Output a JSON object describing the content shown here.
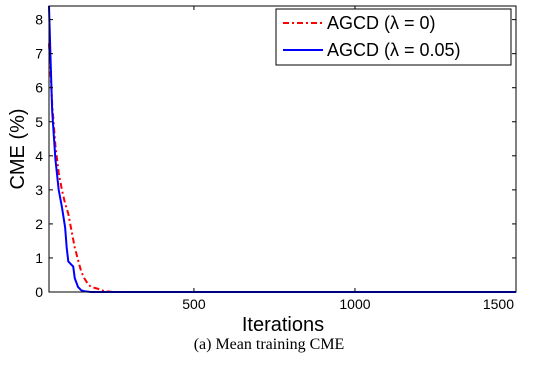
{
  "chart_data": {
    "type": "line",
    "title": "",
    "xlabel": "Iterations",
    "ylabel": "CME (%)",
    "xlim": [
      50,
      1500
    ],
    "ylim": [
      0,
      8.4
    ],
    "x_ticks": [
      "500",
      "1000",
      "1500"
    ],
    "y_ticks": [
      "0",
      "1",
      "2",
      "3",
      "4",
      "5",
      "6",
      "7",
      "8"
    ],
    "x_tick_values": [
      500,
      1000,
      1500
    ],
    "y_tick_values": [
      0,
      1,
      2,
      3,
      4,
      5,
      6,
      7,
      8
    ],
    "grid": false,
    "legend_position": "top-right",
    "series": [
      {
        "name": "AGCD (λ = 0)",
        "color": "#ff0000",
        "style": "dash-dot",
        "x": [
          50,
          60,
          70,
          80,
          90,
          100,
          110,
          120,
          130,
          140,
          150,
          160,
          170,
          180,
          200,
          220,
          250,
          300,
          1500
        ],
        "y": [
          7.3,
          5.5,
          4.3,
          3.5,
          3.0,
          2.6,
          2.3,
          1.8,
          1.3,
          0.95,
          0.6,
          0.4,
          0.25,
          0.15,
          0.1,
          0.03,
          0,
          0,
          0
        ]
      },
      {
        "name": "AGCD (λ = 0.05)",
        "color": "#0000ff",
        "style": "solid",
        "x": [
          50,
          55,
          60,
          70,
          80,
          90,
          100,
          105,
          110,
          120,
          125,
          130,
          140,
          150,
          160,
          180,
          1500
        ],
        "y": [
          8.4,
          6.8,
          5.3,
          3.9,
          3.0,
          2.5,
          1.9,
          1.3,
          0.9,
          0.8,
          0.75,
          0.4,
          0.15,
          0.05,
          0.02,
          0,
          0
        ]
      }
    ]
  },
  "caption": "(a) Mean training CME"
}
